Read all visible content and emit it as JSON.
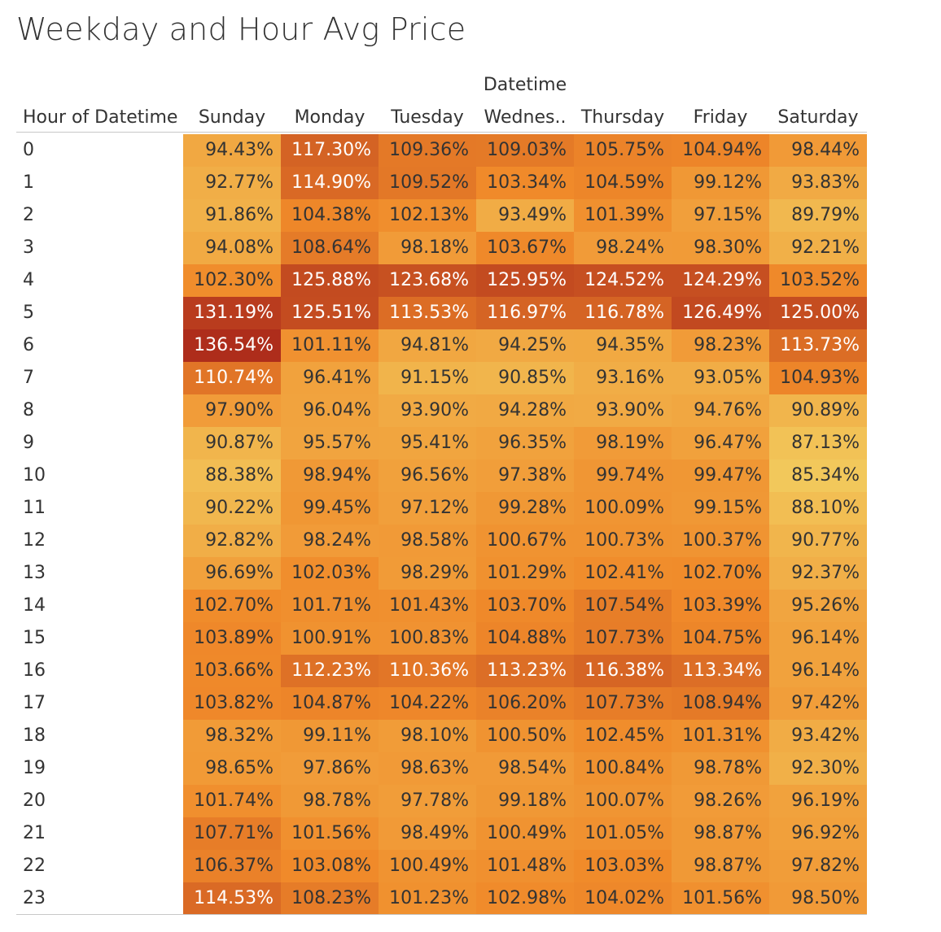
{
  "chart_data": {
    "type": "heatmap",
    "title": "Weekday and Hour Avg Price",
    "column_group_label": "Datetime",
    "row_header": "Hour of Datetime",
    "columns": [
      "Sunday",
      "Monday",
      "Tuesday",
      "Wednes..",
      "Thursday",
      "Friday",
      "Saturday"
    ],
    "rows": [
      "0",
      "1",
      "2",
      "3",
      "4",
      "5",
      "6",
      "7",
      "8",
      "9",
      "10",
      "11",
      "12",
      "13",
      "14",
      "15",
      "16",
      "17",
      "18",
      "19",
      "20",
      "21",
      "22",
      "23"
    ],
    "values": [
      [
        94.43,
        117.3,
        109.36,
        109.03,
        105.75,
        104.94,
        98.44
      ],
      [
        92.77,
        114.9,
        109.52,
        103.34,
        104.59,
        99.12,
        93.83
      ],
      [
        91.86,
        104.38,
        102.13,
        93.49,
        101.39,
        97.15,
        89.79
      ],
      [
        94.08,
        108.64,
        98.18,
        103.67,
        98.24,
        98.3,
        92.21
      ],
      [
        102.3,
        125.88,
        123.68,
        125.95,
        124.52,
        124.29,
        103.52
      ],
      [
        131.19,
        125.51,
        113.53,
        116.97,
        116.78,
        126.49,
        125.0
      ],
      [
        136.54,
        101.11,
        94.81,
        94.25,
        94.35,
        98.23,
        113.73
      ],
      [
        110.74,
        96.41,
        91.15,
        90.85,
        93.16,
        93.05,
        104.93
      ],
      [
        97.9,
        96.04,
        93.9,
        94.28,
        93.9,
        94.76,
        90.89
      ],
      [
        90.87,
        95.57,
        95.41,
        96.35,
        98.19,
        96.47,
        87.13
      ],
      [
        88.38,
        98.94,
        96.56,
        97.38,
        99.74,
        99.47,
        85.34
      ],
      [
        90.22,
        99.45,
        97.12,
        99.28,
        100.09,
        99.15,
        88.1
      ],
      [
        92.82,
        98.24,
        98.58,
        100.67,
        100.73,
        100.37,
        90.77
      ],
      [
        96.69,
        102.03,
        98.29,
        101.29,
        102.41,
        102.7,
        92.37
      ],
      [
        102.7,
        101.71,
        101.43,
        103.7,
        107.54,
        103.39,
        95.26
      ],
      [
        103.89,
        100.91,
        100.83,
        104.88,
        107.73,
        104.75,
        96.14
      ],
      [
        103.66,
        112.23,
        110.36,
        113.23,
        116.38,
        113.34,
        96.14
      ],
      [
        103.82,
        104.87,
        104.22,
        106.2,
        107.73,
        108.94,
        97.42
      ],
      [
        98.32,
        99.11,
        98.1,
        100.5,
        102.45,
        101.31,
        93.42
      ],
      [
        98.65,
        97.86,
        98.63,
        98.54,
        100.84,
        98.78,
        92.3
      ],
      [
        101.74,
        98.78,
        97.78,
        99.18,
        100.07,
        98.26,
        96.19
      ],
      [
        107.71,
        101.56,
        98.49,
        100.49,
        101.05,
        98.87,
        96.92
      ],
      [
        106.37,
        103.08,
        100.49,
        101.48,
        103.03,
        98.87,
        97.82
      ],
      [
        114.53,
        108.23,
        101.23,
        102.98,
        104.02,
        101.56,
        98.5
      ]
    ],
    "value_format": "percent_2dp",
    "color_scale": {
      "low": "#f2c95c",
      "mid": "#f08a2a",
      "high": "#ad2c1b",
      "domain": [
        85,
        137
      ]
    },
    "grid": false,
    "legend": "none"
  }
}
